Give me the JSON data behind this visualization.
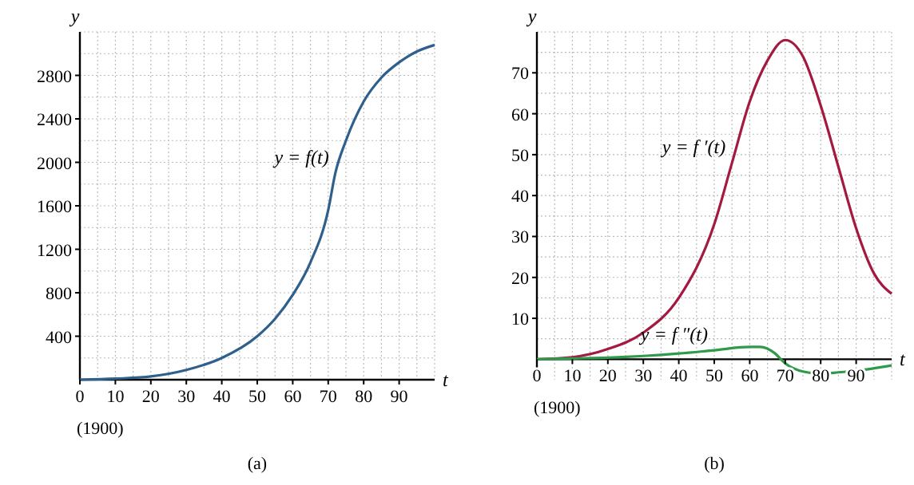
{
  "chart_data": [
    {
      "type": "line",
      "title": "(a)",
      "xlabel": "t",
      "ylabel": "y",
      "x": [
        0,
        10,
        20,
        30,
        40,
        50,
        55,
        60,
        65,
        70,
        72,
        75,
        80,
        85,
        90,
        95,
        100
      ],
      "xlim": [
        0,
        100
      ],
      "xticks": [
        0,
        10,
        20,
        30,
        40,
        50,
        60,
        70,
        80,
        90
      ],
      "ylim": [
        0,
        3200
      ],
      "yticks": [
        400,
        800,
        1200,
        1600,
        2000,
        2400,
        2800
      ],
      "grid": true,
      "series": [
        {
          "name": "y = f(t)",
          "color": "#2f5f8c",
          "values": [
            0,
            10,
            30,
            90,
            200,
            400,
            560,
            780,
            1080,
            1560,
            1900,
            2200,
            2560,
            2780,
            2920,
            3020,
            3080
          ]
        }
      ],
      "annotations": [
        "(1900)"
      ]
    },
    {
      "type": "line",
      "title": "(b)",
      "xlabel": "t",
      "ylabel": "y",
      "xlim": [
        0,
        100
      ],
      "xticks": [
        0,
        10,
        20,
        30,
        40,
        50,
        60,
        70,
        80,
        90
      ],
      "ylim": [
        -5,
        80
      ],
      "yticks": [
        10,
        20,
        30,
        40,
        50,
        60,
        70
      ],
      "grid": true,
      "series": [
        {
          "name": "y = f ′(t)",
          "color": "#a3193f",
          "x": [
            0,
            10,
            20,
            30,
            40,
            50,
            55,
            60,
            65,
            70,
            75,
            80,
            85,
            90,
            95,
            100
          ],
          "values": [
            0,
            0.5,
            2.5,
            6.5,
            15,
            33,
            48,
            63,
            73,
            78,
            74,
            62,
            47,
            32,
            21,
            16
          ]
        },
        {
          "name": "y = f ″(t)",
          "color": "#2e9a4a",
          "x": [
            0,
            10,
            20,
            30,
            40,
            50,
            60,
            63,
            67,
            70,
            75,
            80,
            85,
            90,
            100
          ],
          "values": [
            0,
            0.2,
            0.4,
            0.8,
            1.4,
            2.2,
            3,
            3,
            1.5,
            -1,
            -3,
            -3.5,
            -3.2,
            -2.8,
            -1.5
          ]
        }
      ],
      "annotations": [
        "(1900)"
      ]
    }
  ]
}
